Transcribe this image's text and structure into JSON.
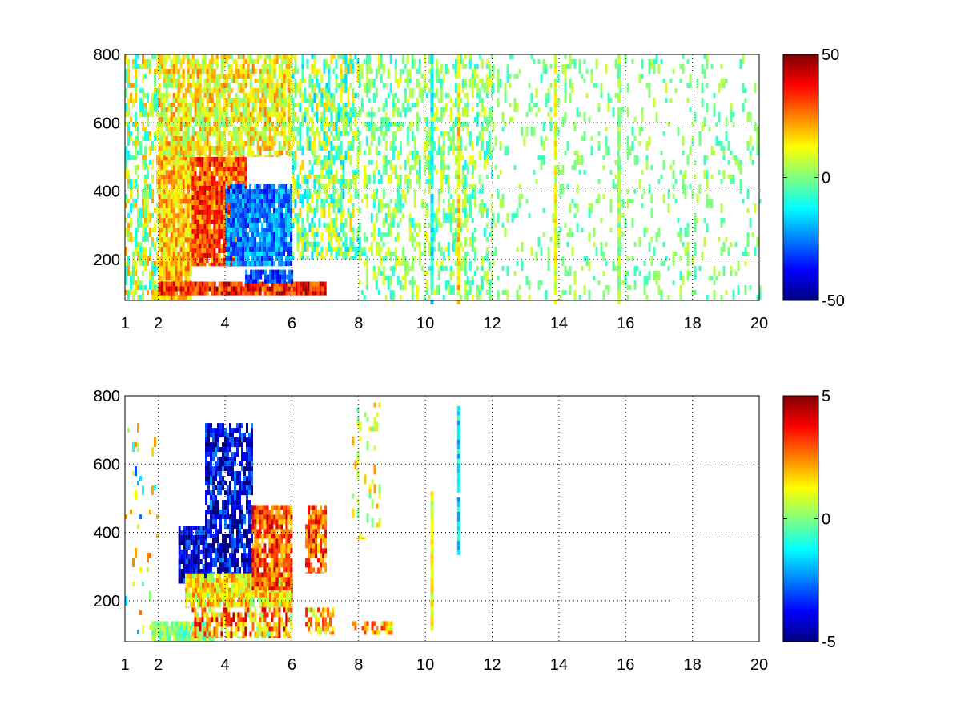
{
  "chart_data": [
    {
      "type": "heatmap",
      "title": "",
      "xlabel": "",
      "ylabel": "",
      "xlim": [
        1,
        20
      ],
      "ylim": [
        80,
        800
      ],
      "xticks": [
        "1",
        "2",
        "4",
        "6",
        "8",
        "10",
        "12",
        "14",
        "16",
        "18",
        "20"
      ],
      "yticks": [
        "200",
        "400",
        "600",
        "800"
      ],
      "colorbar": {
        "range": [
          -50,
          50
        ],
        "ticks": [
          "50",
          "0",
          "-50"
        ],
        "colormap": "jet"
      },
      "grid": true,
      "regions": [
        {
          "x": [
            1.0,
            2.0
          ],
          "y": [
            80,
            800
          ],
          "mean": 5,
          "spread": 18,
          "density": 0.45
        },
        {
          "x": [
            2.0,
            3.0
          ],
          "y": [
            80,
            560
          ],
          "mean": 18,
          "spread": 12,
          "density": 0.9
        },
        {
          "x": [
            3.0,
            4.6
          ],
          "y": [
            180,
            500
          ],
          "mean": 30,
          "spread": 14,
          "density": 0.95
        },
        {
          "x": [
            4.0,
            6.0
          ],
          "y": [
            180,
            420
          ],
          "mean": -25,
          "spread": 12,
          "density": 0.9
        },
        {
          "x": [
            2.0,
            6.0
          ],
          "y": [
            500,
            800
          ],
          "mean": 12,
          "spread": 14,
          "density": 0.7
        },
        {
          "x": [
            2.0,
            7.0
          ],
          "y": [
            95,
            135
          ],
          "mean": 35,
          "spread": 15,
          "density": 0.95
        },
        {
          "x": [
            4.6,
            6.0
          ],
          "y": [
            130,
            170
          ],
          "mean": -30,
          "spread": 10,
          "density": 0.9
        },
        {
          "x": [
            6.0,
            8.0
          ],
          "y": [
            200,
            800
          ],
          "mean": 0,
          "spread": 18,
          "density": 0.5
        },
        {
          "x": [
            8.0,
            12.0
          ],
          "y": [
            80,
            800
          ],
          "mean": 0,
          "spread": 12,
          "density": 0.3
        },
        {
          "x": [
            12.0,
            20.0
          ],
          "y": [
            80,
            800
          ],
          "mean": 0,
          "spread": 8,
          "density": 0.12
        }
      ],
      "lines": [
        {
          "x": 10.2,
          "y": [
            80,
            800
          ],
          "value": -12
        },
        {
          "x": 11.0,
          "y": [
            80,
            800
          ],
          "value": 15
        },
        {
          "x": 13.9,
          "y": [
            80,
            800
          ],
          "value": 10
        },
        {
          "x": 15.8,
          "y": [
            80,
            800
          ],
          "value": 3
        }
      ]
    },
    {
      "type": "heatmap",
      "title": "",
      "xlabel": "",
      "ylabel": "",
      "xlim": [
        1,
        20
      ],
      "ylim": [
        80,
        800
      ],
      "xticks": [
        "1",
        "2",
        "4",
        "6",
        "8",
        "10",
        "12",
        "14",
        "16",
        "18",
        "20"
      ],
      "yticks": [
        "200",
        "400",
        "600",
        "800"
      ],
      "colorbar": {
        "range": [
          -5,
          5
        ],
        "ticks": [
          "5",
          "0",
          "-5"
        ],
        "colormap": "jet"
      },
      "grid": true,
      "regions": [
        {
          "x": [
            2.6,
            3.4
          ],
          "y": [
            250,
            420
          ],
          "mean": -4,
          "spread": 1.5,
          "density": 0.85
        },
        {
          "x": [
            3.4,
            4.8
          ],
          "y": [
            280,
            720
          ],
          "mean": -4,
          "spread": 1.8,
          "density": 0.7
        },
        {
          "x": [
            2.8,
            6.0
          ],
          "y": [
            180,
            280
          ],
          "mean": 1.5,
          "spread": 1.5,
          "density": 0.9
        },
        {
          "x": [
            4.8,
            6.0
          ],
          "y": [
            230,
            480
          ],
          "mean": 3,
          "spread": 1.5,
          "density": 0.8
        },
        {
          "x": [
            1.8,
            3.6
          ],
          "y": [
            80,
            140
          ],
          "mean": 0,
          "spread": 1.0,
          "density": 0.85
        },
        {
          "x": [
            3.0,
            6.0
          ],
          "y": [
            90,
            180
          ],
          "mean": 2,
          "spread": 2.5,
          "density": 0.6
        },
        {
          "x": [
            6.4,
            7.0
          ],
          "y": [
            280,
            480
          ],
          "mean": 3,
          "spread": 1.5,
          "density": 0.7
        },
        {
          "x": [
            6.4,
            7.2
          ],
          "y": [
            100,
            180
          ],
          "mean": 2,
          "spread": 1.5,
          "density": 0.6
        },
        {
          "x": [
            7.8,
            9.0
          ],
          "y": [
            100,
            140
          ],
          "mean": 2,
          "spread": 1.5,
          "density": 0.5
        },
        {
          "x": [
            1.0,
            2.0
          ],
          "y": [
            80,
            720
          ],
          "mean": 0,
          "spread": 3,
          "density": 0.05
        },
        {
          "x": [
            7.8,
            8.6
          ],
          "y": [
            380,
            780
          ],
          "mean": 1,
          "spread": 1.5,
          "density": 0.12
        }
      ],
      "lines": [
        {
          "x": 10.2,
          "y": [
            120,
            520
          ],
          "value": 1
        },
        {
          "x": 11.0,
          "y": [
            340,
            770
          ],
          "value": -1.5
        }
      ]
    }
  ]
}
